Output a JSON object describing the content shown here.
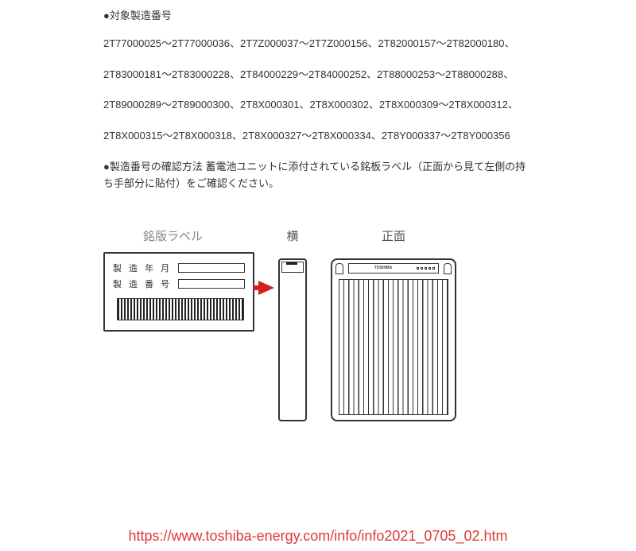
{
  "heading1": "●対象製造番号",
  "serials": {
    "p1": "2T77000025～2T77000036、2T7Z000037～2T7Z000156、2T82000157～2T82000180、",
    "p2": "2T83000181～2T83000228、2T84000229～2T84000252、2T88000253～2T88000288、",
    "p3": "2T89000289～2T89000300、2T8X000301、2T8X000302、2T8X000309～2T8X000312、",
    "p4": "2T8X000315～2T8X000318、2T8X000327～2T8X000334、2T8Y000337～2T8Y000356"
  },
  "heading2": "●製造番号の確認方法 蓄電池ユニットに添付されている銘板ラベル（正面から見て左側の持ち手部分に貼付）をご確認ください。",
  "diagram": {
    "label_title": "銘版ラベル",
    "row1": "製 造 年 月",
    "row2": "製 造 番 号",
    "side_title": "横",
    "front_title": "正面",
    "brand": "TOSHIBA",
    "arrow_color": "#d62020",
    "border_color": "#333333"
  },
  "url": "https://www.toshiba-energy.com/info/info2021_0705_02.htm"
}
